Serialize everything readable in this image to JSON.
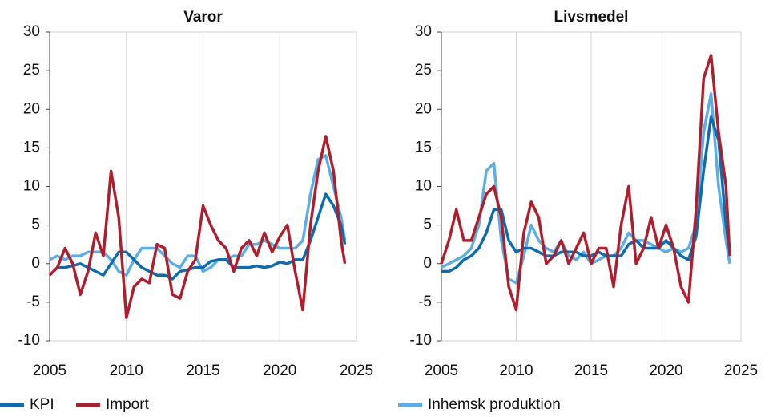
{
  "chart_data": [
    {
      "type": "line",
      "title": "Varor",
      "x": [
        2005,
        2005.5,
        2006,
        2006.5,
        2007,
        2007.5,
        2008,
        2008.5,
        2009,
        2009.5,
        2010,
        2010.5,
        2011,
        2011.5,
        2012,
        2012.5,
        2013,
        2013.5,
        2014,
        2014.5,
        2015,
        2015.5,
        2016,
        2016.5,
        2017,
        2017.5,
        2018,
        2018.5,
        2019,
        2019.5,
        2020,
        2020.5,
        2021,
        2021.5,
        2022,
        2022.5,
        2023,
        2023.5,
        2024,
        2024.25
      ],
      "xlim": [
        2005,
        2025
      ],
      "xticks": [
        2005,
        2010,
        2015,
        2020,
        2025
      ],
      "ylim": [
        -10,
        30
      ],
      "yticks": [
        -10,
        -5,
        0,
        5,
        10,
        15,
        20,
        25,
        30
      ],
      "grid": "x",
      "series": [
        {
          "name": "Inhemsk produktion",
          "color": "#5aaee8",
          "values": [
            0.5,
            1,
            0.5,
            1,
            1,
            1.5,
            1.5,
            1.5,
            0.5,
            -1,
            -1.5,
            0.5,
            2,
            2,
            2,
            1,
            0,
            -0.5,
            1,
            1,
            -1,
            -0.5,
            0.5,
            0.5,
            1,
            1,
            2.5,
            2.5,
            3,
            2.5,
            2,
            2,
            2,
            3,
            9,
            13.5,
            14,
            10,
            6,
            3
          ]
        },
        {
          "name": "KPI",
          "color": "#0b6cb0",
          "values": [
            -1.5,
            -0.5,
            -0.5,
            -0.3,
            0,
            -0.5,
            -1,
            -1.5,
            0,
            1.5,
            1.5,
            0.5,
            -0.5,
            -1,
            -1.5,
            -1.5,
            -2,
            -1,
            -0.8,
            -0.5,
            -0.5,
            0.3,
            0.5,
            0.5,
            -0.5,
            -0.5,
            -0.5,
            -0.3,
            -0.5,
            -0.3,
            0.2,
            0,
            0.5,
            0.5,
            3,
            6,
            9,
            7.5,
            5,
            2.5
          ]
        },
        {
          "name": "Import",
          "color": "#b01e2d",
          "values": [
            -1.5,
            -0.5,
            2,
            0,
            -4,
            -1,
            4,
            1,
            12,
            6,
            -7,
            -3,
            -2,
            -2.5,
            2.5,
            2,
            -4,
            -4.5,
            -1,
            0.5,
            7.5,
            5,
            3,
            2,
            -1,
            2,
            3,
            1,
            4,
            1.5,
            3.5,
            5,
            -1,
            -6,
            5,
            12,
            16.5,
            12,
            3,
            0
          ]
        }
      ]
    },
    {
      "type": "line",
      "title": "Livsmedel",
      "x": [
        2005,
        2005.5,
        2006,
        2006.5,
        2007,
        2007.5,
        2008,
        2008.5,
        2009,
        2009.5,
        2010,
        2010.5,
        2011,
        2011.5,
        2012,
        2012.5,
        2013,
        2013.5,
        2014,
        2014.5,
        2015,
        2015.5,
        2016,
        2016.5,
        2017,
        2017.5,
        2018,
        2018.5,
        2019,
        2019.5,
        2020,
        2020.5,
        2021,
        2021.5,
        2022,
        2022.5,
        2023,
        2023.5,
        2024,
        2024.25
      ],
      "xlim": [
        2005,
        2025
      ],
      "xticks": [
        2005,
        2010,
        2015,
        2020,
        2025
      ],
      "ylim": [
        -10,
        30
      ],
      "yticks": [
        -10,
        -5,
        0,
        5,
        10,
        15,
        20,
        25,
        30
      ],
      "grid": "x",
      "series": [
        {
          "name": "Inhemsk produktion",
          "color": "#5aaee8",
          "values": [
            -0.5,
            0,
            0.5,
            1,
            2,
            5,
            12,
            13,
            3,
            -2,
            -2.5,
            1,
            5,
            3,
            2,
            1.5,
            3,
            1,
            0.5,
            1.5,
            0,
            0.5,
            1,
            1,
            2,
            4,
            3,
            3,
            2.5,
            2,
            1.5,
            2,
            1.5,
            2,
            5,
            17,
            22,
            10,
            3,
            0
          ]
        },
        {
          "name": "KPI",
          "color": "#0b6cb0",
          "values": [
            -1,
            -1,
            -0.5,
            0.5,
            1,
            2,
            4,
            7,
            7,
            3,
            1.5,
            2,
            2,
            1.5,
            1,
            1,
            1.5,
            1.5,
            1.5,
            1,
            1,
            1.5,
            1,
            1,
            1,
            2.5,
            3,
            2,
            2,
            2,
            3,
            2,
            1,
            0.5,
            3.5,
            12,
            19,
            16,
            5,
            1.5
          ]
        },
        {
          "name": "Import",
          "color": "#b01e2d",
          "values": [
            0,
            3,
            7,
            3,
            3,
            6,
            9,
            10,
            6,
            -3,
            -6,
            4,
            8,
            6,
            0,
            1,
            3,
            0,
            2,
            4,
            0,
            2,
            2,
            -3,
            5,
            10,
            0,
            2,
            6,
            2,
            5,
            2,
            -3,
            -5,
            7,
            24,
            27,
            17,
            10,
            1
          ]
        }
      ]
    }
  ]
}
